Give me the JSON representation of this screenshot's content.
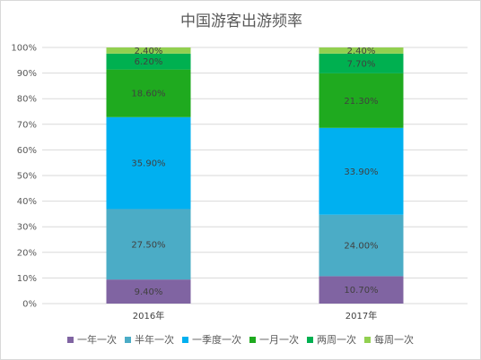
{
  "chart_data": {
    "type": "bar",
    "stacked": true,
    "percent_stacked": true,
    "title": "中国游客出游频率",
    "categories": [
      "2016年",
      "2017年"
    ],
    "series": [
      {
        "name": "一年一次",
        "color": "#8064A2",
        "values": [
          9.4,
          10.7
        ],
        "labels": [
          "9.40%",
          "10.70%"
        ]
      },
      {
        "name": "半年一次",
        "color": "#4BACC6",
        "values": [
          27.5,
          24.0
        ],
        "labels": [
          "27.50%",
          "24.00%"
        ]
      },
      {
        "name": "一季度一次",
        "color": "#00B0F0",
        "values": [
          35.9,
          33.9
        ],
        "labels": [
          "35.90%",
          "33.90%"
        ]
      },
      {
        "name": "一月一次",
        "color": "#1FAA1F",
        "values": [
          18.6,
          21.3
        ],
        "labels": [
          "18.60%",
          "21.30%"
        ]
      },
      {
        "name": "两周一次",
        "color": "#00B050",
        "values": [
          6.2,
          7.7
        ],
        "labels": [
          "6.20%",
          "7.70%"
        ]
      },
      {
        "name": "每周一次",
        "color": "#92D050",
        "values": [
          2.4,
          2.4
        ],
        "labels": [
          "2.40%",
          "2.40%"
        ]
      }
    ],
    "ylim": [
      0,
      100
    ],
    "yticks": [
      "0%",
      "10%",
      "20%",
      "30%",
      "40%",
      "50%",
      "60%",
      "70%",
      "80%",
      "90%",
      "100%"
    ],
    "grid": true,
    "legend_position": "bottom"
  }
}
